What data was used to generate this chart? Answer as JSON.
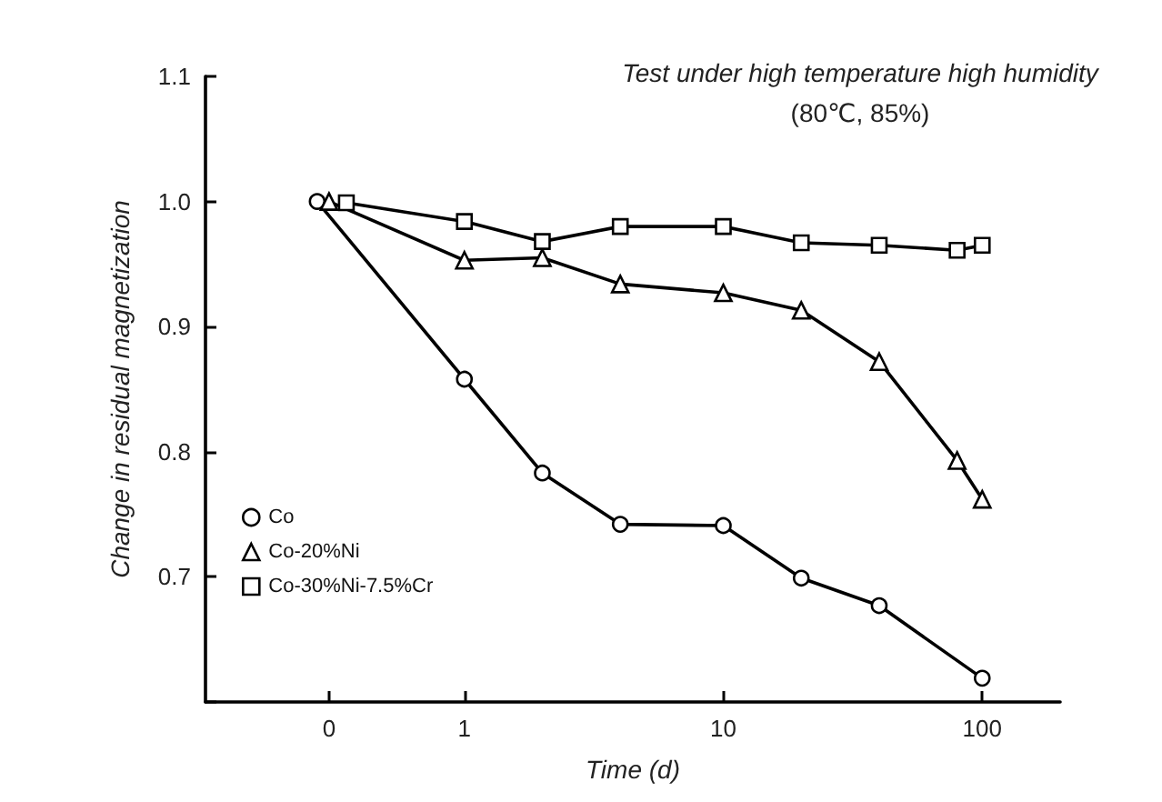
{
  "chart_data": {
    "type": "line",
    "title": "Test under high temperature high humidity",
    "subtitle": "(80℃, 85%)",
    "xlabel": "Time (d)",
    "ylabel": "Change in residual magnetization",
    "log": "x",
    "xlim": [
      0.1,
      200
    ],
    "xticks": [
      {
        "value": 0.3,
        "label": "0"
      },
      1,
      10,
      100
    ],
    "ylim": [
      0.6,
      1.1
    ],
    "yticks": [
      {
        "value": 0.6,
        "label": null
      },
      0.7,
      0.8,
      0.9,
      {
        "value": 1,
        "label": "1.0"
      },
      1.1
    ],
    "grid": false,
    "legend": "bottom left",
    "line_style": "solid",
    "series": [
      {
        "name": "Co",
        "color": "#000000",
        "marker": "circle",
        "x": [
          0.27,
          1,
          2,
          4,
          10,
          20,
          40,
          100
        ],
        "values": [
          1.0,
          0.858,
          0.783,
          0.742,
          0.741,
          0.699,
          0.677,
          0.619
        ]
      },
      {
        "name": "Co-20%Ni",
        "color": "#000000",
        "marker": "triangle",
        "x": [
          0.3,
          1,
          2,
          4,
          10,
          20,
          40,
          80,
          100
        ],
        "values": [
          1.0,
          0.953,
          0.955,
          0.934,
          0.927,
          0.913,
          0.872,
          0.793,
          0.762
        ]
      },
      {
        "name": "Co-30%Ni-7.5%Cr",
        "color": "#000000",
        "marker": "square",
        "x": [
          0.35,
          1,
          2,
          4,
          10,
          20,
          40,
          80,
          100
        ],
        "values": [
          0.999,
          0.984,
          0.968,
          0.98,
          0.98,
          0.967,
          0.965,
          0.961,
          0.965
        ]
      }
    ]
  }
}
